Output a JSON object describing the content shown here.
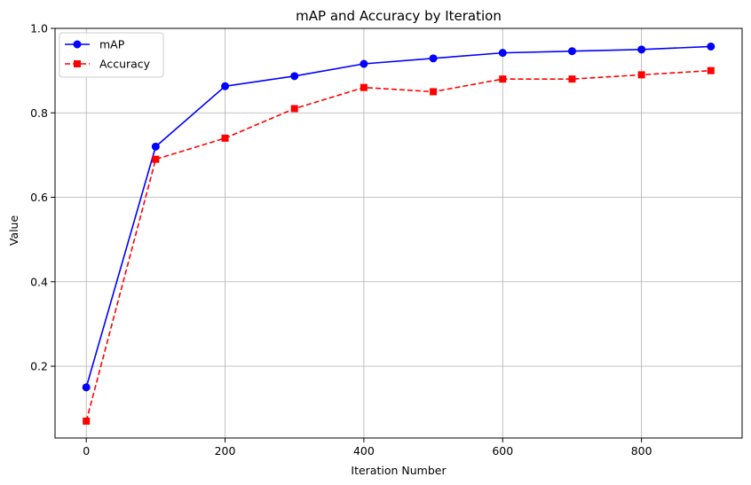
{
  "chart_data": {
    "type": "line",
    "title": "mAP and Accuracy by Iteration",
    "xlabel": "Iteration Number",
    "ylabel": "Value",
    "xlim": [
      -45,
      945
    ],
    "ylim": [
      0.03,
      1.0
    ],
    "x": [
      0,
      100,
      200,
      300,
      400,
      500,
      600,
      700,
      800,
      900
    ],
    "x_ticks": [
      0,
      200,
      400,
      600,
      800
    ],
    "x_tick_labels": [
      "0",
      "200",
      "400",
      "600",
      "800"
    ],
    "y_ticks": [
      0.2,
      0.4,
      0.6,
      0.8,
      1.0
    ],
    "y_tick_labels": [
      "0.2",
      "0.4",
      "0.6",
      "0.8",
      "1.0"
    ],
    "grid": true,
    "legend_position": "top-left",
    "series": [
      {
        "name": "mAP",
        "values": [
          0.15,
          0.72,
          0.863,
          0.887,
          0.916,
          0.929,
          0.942,
          0.946,
          0.95,
          0.957
        ],
        "color": "#0000ff",
        "line_style": "solid",
        "marker": "circle"
      },
      {
        "name": "Accuracy",
        "values": [
          0.07,
          0.69,
          0.74,
          0.81,
          0.86,
          0.85,
          0.88,
          0.88,
          0.89,
          0.9
        ],
        "color": "#ff0000",
        "line_style": "dashed",
        "marker": "square"
      }
    ]
  }
}
